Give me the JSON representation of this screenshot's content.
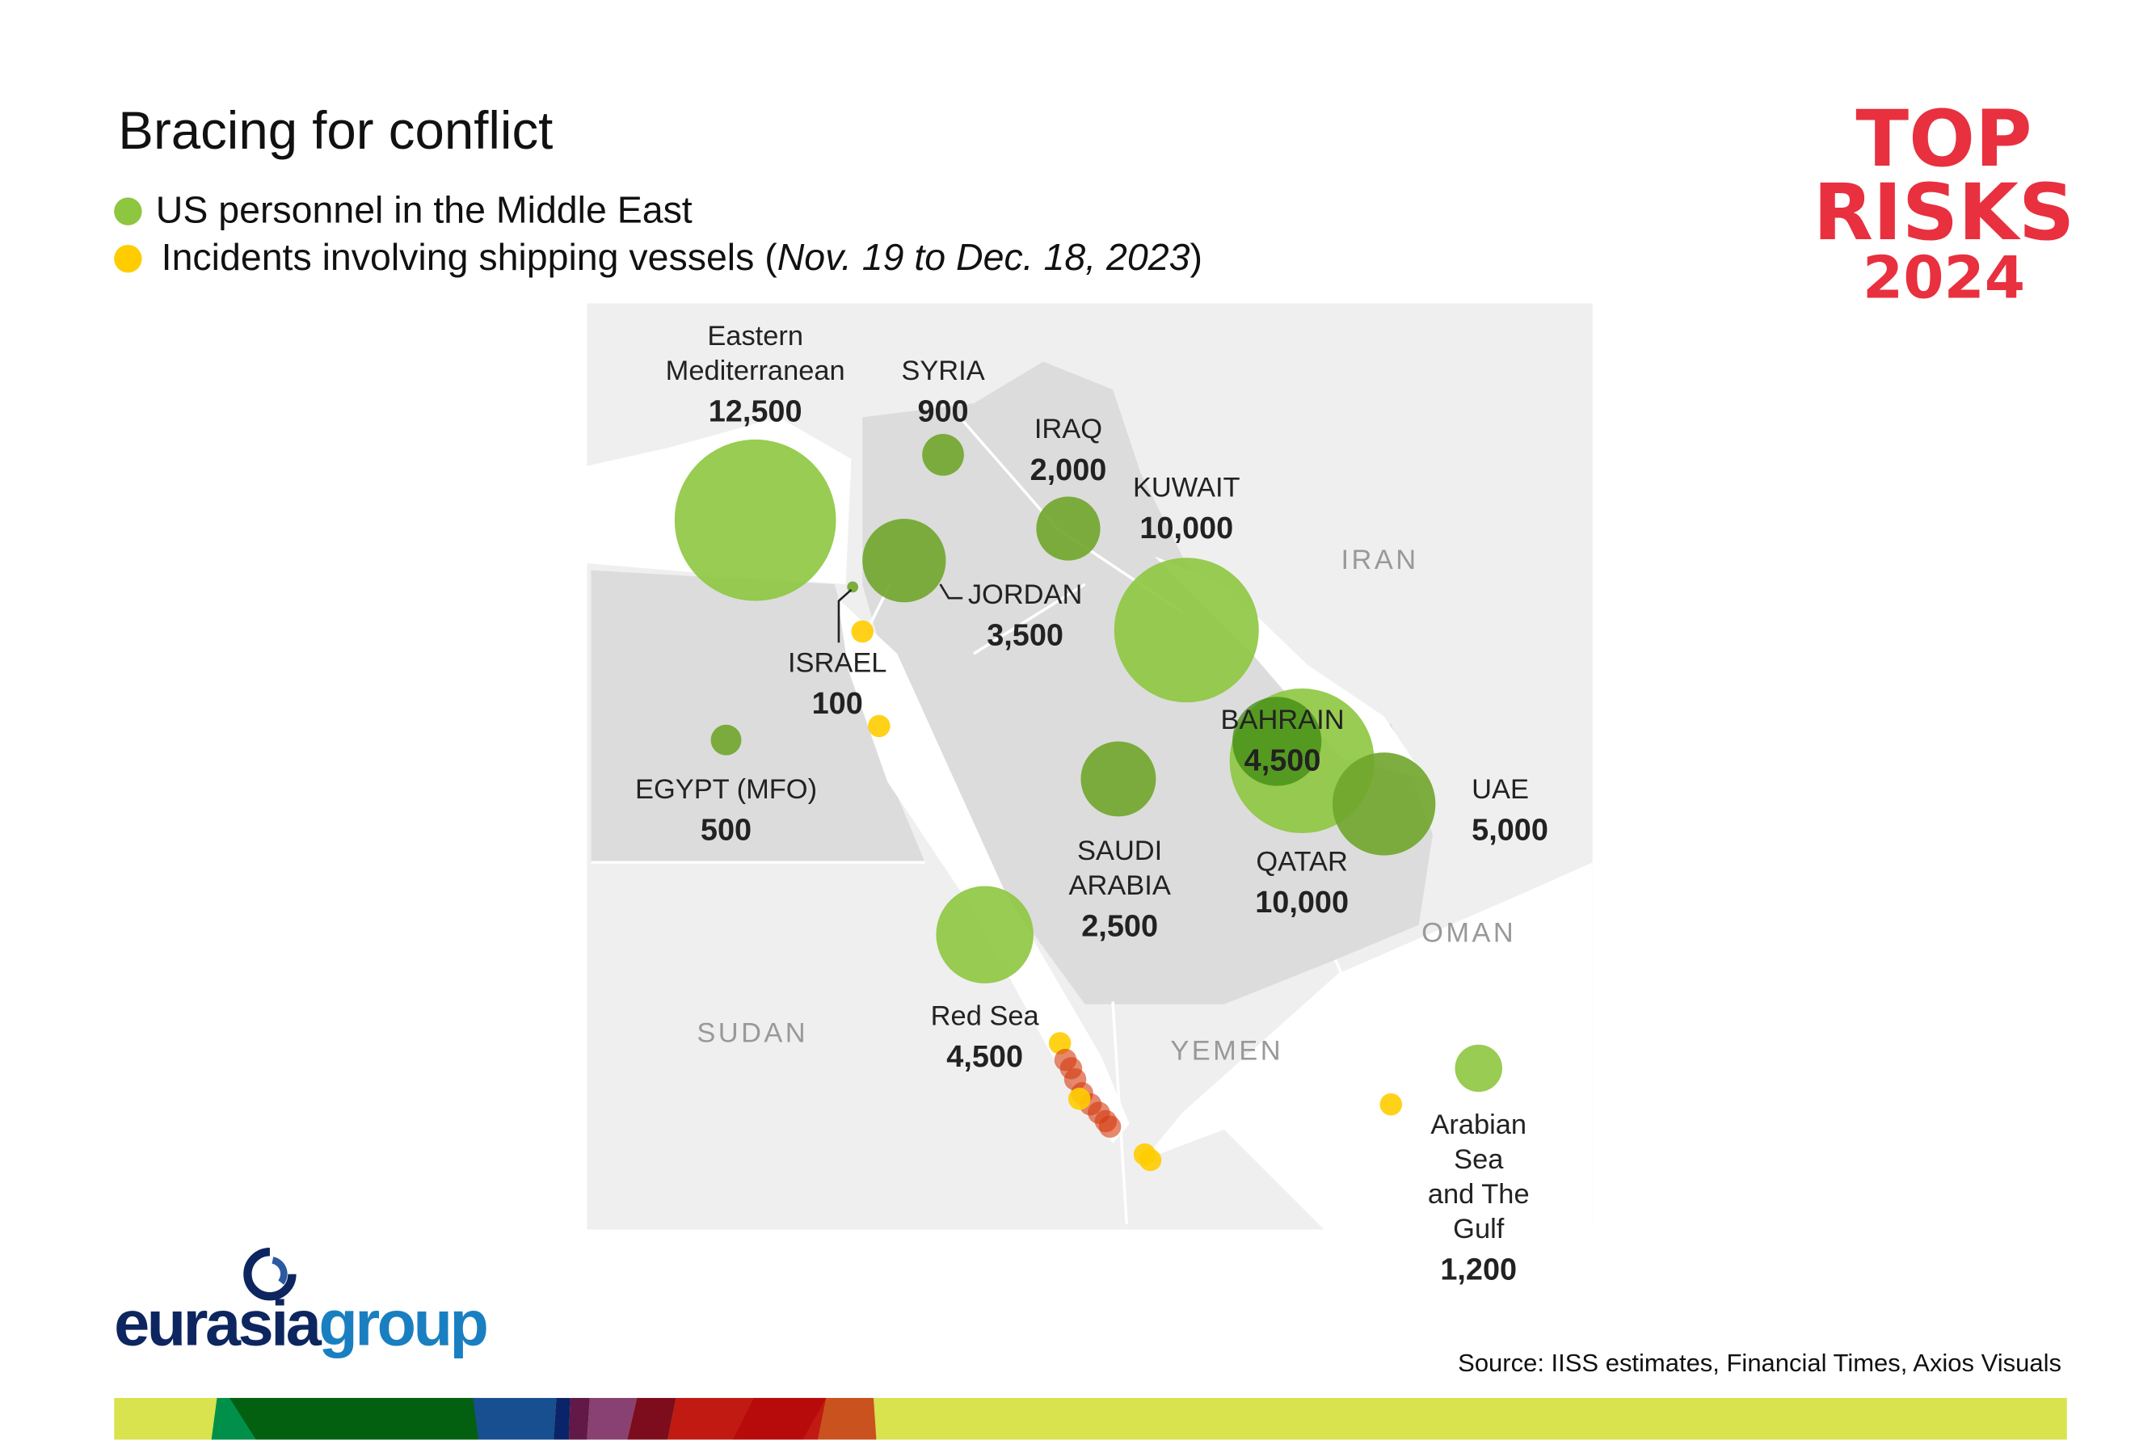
{
  "title": "Bracing for conflict",
  "legend": [
    {
      "label": "US personnel in the Middle East",
      "color": "#8dc63f"
    },
    {
      "label": "Incidents involving shipping vessels (",
      "italic": "Nov. 19 to Dec. 18, 2023",
      "close": ")",
      "color": "#ffcc00"
    }
  ],
  "brand": {
    "line1": "TOP",
    "line2": "RISKS",
    "line3": "2024",
    "color": "#e8303f"
  },
  "locations": [
    {
      "name": "Eastern Mediterranean",
      "value": "12,500",
      "personnel": 12500
    },
    {
      "name": "SYRIA",
      "value": "900",
      "personnel": 900
    },
    {
      "name": "IRAQ",
      "value": "2,000",
      "personnel": 2000
    },
    {
      "name": "KUWAIT",
      "value": "10,000",
      "personnel": 10000
    },
    {
      "name": "JORDAN",
      "value": "3,500",
      "personnel": 3500
    },
    {
      "name": "ISRAEL",
      "value": "100",
      "personnel": 100
    },
    {
      "name": "EGYPT (MFO)",
      "value": "500",
      "personnel": 500
    },
    {
      "name": "BAHRAIN",
      "value": "4,500",
      "personnel": 4500
    },
    {
      "name": "SAUDI ARABIA",
      "value": "2,500",
      "personnel": 2500
    },
    {
      "name": "QATAR",
      "value": "10,000",
      "personnel": 10000
    },
    {
      "name": "UAE",
      "value": "5,000",
      "personnel": 5000
    },
    {
      "name": "Red Sea",
      "value": "4,500",
      "personnel": 4500
    },
    {
      "name": "Arabian Sea and The Gulf",
      "value": "1,200",
      "personnel": 1200
    }
  ],
  "countries": [
    "IRAN",
    "OMAN",
    "SUDAN",
    "YEMEN"
  ],
  "colors": {
    "personnel": "#8dc63f",
    "personnel_dark": "#6fa52a",
    "incident": "#ffcc00",
    "incident_dense": "#d4380d",
    "land": "#efefef",
    "focus_land": "#dcdcdc",
    "water": "#ffffff"
  },
  "logo": {
    "part1": "eurasia",
    "part2": "group"
  },
  "source": "Source: IISS estimates, Financial Times, Axios Visuals"
}
